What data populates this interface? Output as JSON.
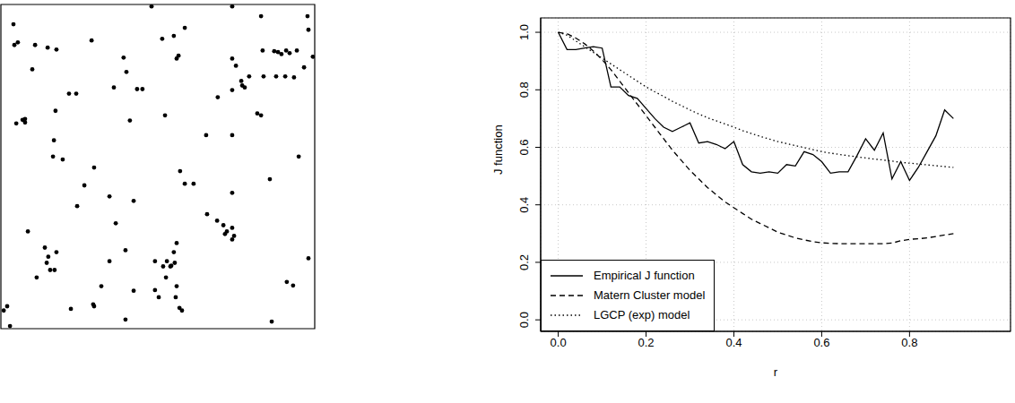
{
  "chart_data": [
    {
      "type": "scatter",
      "color": "#000000",
      "marker": "circle",
      "xlim": [
        0,
        1
      ],
      "ylim": [
        0,
        1
      ],
      "tick_labels": false,
      "x": [
        0.48,
        0.737,
        0.829,
        0.977,
        0.98,
        0.994,
        0.04,
        0.054,
        0.043,
        0.109,
        0.149,
        0.177,
        0.289,
        0.514,
        0.551,
        0.586,
        0.566,
        0.56,
        0.391,
        0.4,
        0.1,
        0.36,
        0.434,
        0.451,
        0.217,
        0.24,
        0.174,
        0.049,
        0.069,
        0.077,
        0.077,
        0.411,
        0.523,
        0.691,
        0.737,
        0.737,
        0.749,
        0.766,
        0.777,
        0.769,
        0.791,
        0.834,
        0.837,
        0.877,
        0.906,
        0.934,
        0.871,
        0.883,
        0.894,
        0.909,
        0.92,
        0.966,
        0.943,
        0.817,
        0.829,
        0.169,
        0.166,
        0.197,
        0.297,
        0.266,
        0.346,
        0.366,
        0.423,
        0.571,
        0.586,
        0.614,
        0.654,
        0.737,
        0.737,
        0.949,
        0.857,
        0.243,
        0.657,
        0.689,
        0.709,
        0.72,
        0.714,
        0.737,
        0.737,
        0.743,
        0.086,
        0.14,
        0.177,
        0.151,
        0.146,
        0.157,
        0.114,
        0.171,
        0.346,
        0.397,
        0.32,
        0.423,
        0.491,
        0.529,
        0.543,
        0.551,
        0.56,
        0.554,
        0.54,
        0.517,
        0.56,
        0.526,
        0.491,
        0.503,
        0.557,
        0.569,
        0.577,
        0.294,
        0.297,
        0.223,
        0.397,
        0.863,
        0.911,
        0.931,
        0.98,
        0.02,
        0.009,
        0.029
      ],
      "y": [
        0.994,
        0.994,
        0.964,
        0.964,
        0.922,
        0.839,
        0.939,
        0.883,
        0.875,
        0.875,
        0.867,
        0.861,
        0.889,
        0.894,
        0.903,
        0.928,
        0.842,
        0.833,
        0.836,
        0.792,
        0.8,
        0.744,
        0.739,
        0.739,
        0.725,
        0.725,
        0.672,
        0.633,
        0.644,
        0.647,
        0.636,
        0.642,
        0.658,
        0.714,
        0.736,
        0.833,
        0.811,
        0.764,
        0.744,
        0.75,
        0.778,
        0.858,
        0.778,
        0.778,
        0.778,
        0.775,
        0.856,
        0.853,
        0.847,
        0.858,
        0.85,
        0.806,
        0.858,
        0.664,
        0.658,
        0.581,
        0.531,
        0.522,
        0.497,
        0.442,
        0.408,
        0.325,
        0.394,
        0.486,
        0.447,
        0.447,
        0.597,
        0.597,
        0.419,
        0.531,
        0.461,
        0.378,
        0.353,
        0.333,
        0.319,
        0.3,
        0.292,
        0.311,
        0.275,
        0.286,
        0.3,
        0.25,
        0.236,
        0.222,
        0.203,
        0.181,
        0.158,
        0.181,
        0.208,
        0.242,
        0.131,
        0.117,
        0.208,
        0.208,
        0.194,
        0.236,
        0.264,
        0.203,
        0.192,
        0.192,
        0.131,
        0.158,
        0.119,
        0.097,
        0.097,
        0.064,
        0.056,
        0.075,
        0.069,
        0.061,
        0.028,
        0.022,
        0.144,
        0.133,
        0.217,
        0.069,
        0.056,
        0.008
      ]
    },
    {
      "type": "line",
      "x_label": "r",
      "y_label": "J function",
      "grid": true,
      "legend": "bottom-left",
      "xlim": [
        -0.04,
        1.03
      ],
      "ylim": [
        -0.04,
        1.05
      ],
      "xticks": [
        {
          "value": 0,
          "label": "0.0"
        },
        {
          "value": 0.2,
          "label": "0.2"
        },
        {
          "value": 0.4,
          "label": "0.4"
        },
        {
          "value": 0.6,
          "label": "0.6"
        },
        {
          "value": 0.8,
          "label": "0.8"
        }
      ],
      "yticks": [
        {
          "value": 0,
          "label": "0.0"
        },
        {
          "value": 0.2,
          "label": "0.2"
        },
        {
          "value": 0.4,
          "label": "0.4"
        },
        {
          "value": 0.6,
          "label": "0.6"
        },
        {
          "value": 0.8,
          "label": "0.8"
        },
        {
          "value": 1,
          "label": "1.0"
        }
      ],
      "x": [
        0,
        0.02,
        0.04,
        0.06,
        0.08,
        0.1,
        0.12,
        0.14,
        0.16,
        0.18,
        0.2,
        0.22,
        0.24,
        0.26,
        0.28,
        0.3,
        0.32,
        0.34,
        0.36,
        0.38,
        0.4,
        0.42,
        0.44,
        0.46,
        0.48,
        0.5,
        0.52,
        0.54,
        0.56,
        0.58,
        0.6,
        0.62,
        0.64,
        0.66,
        0.68,
        0.7,
        0.72,
        0.74,
        0.76,
        0.78,
        0.8,
        0.82,
        0.84,
        0.86,
        0.88,
        0.9
      ],
      "series": [
        {
          "name": "Empirical J function",
          "color": "#000000",
          "line_style": "solid",
          "values": [
            1.0,
            0.94,
            0.94,
            0.945,
            0.95,
            0.945,
            0.81,
            0.81,
            0.78,
            0.77,
            0.735,
            0.7,
            0.67,
            0.655,
            0.67,
            0.685,
            0.615,
            0.62,
            0.61,
            0.595,
            0.62,
            0.54,
            0.515,
            0.51,
            0.515,
            0.51,
            0.54,
            0.535,
            0.585,
            0.575,
            0.55,
            0.51,
            0.515,
            0.515,
            0.57,
            0.63,
            0.59,
            0.65,
            0.49,
            0.55,
            0.485,
            0.53,
            0.585,
            0.64,
            0.73,
            0.7
          ]
        },
        {
          "name": "Matern Cluster model",
          "color": "#000000",
          "line_style": "dashed",
          "values": [
            1.0,
            0.995,
            0.98,
            0.96,
            0.935,
            0.905,
            0.87,
            0.83,
            0.79,
            0.75,
            0.71,
            0.67,
            0.63,
            0.59,
            0.555,
            0.52,
            0.49,
            0.46,
            0.435,
            0.41,
            0.39,
            0.37,
            0.35,
            0.335,
            0.32,
            0.305,
            0.295,
            0.285,
            0.278,
            0.272,
            0.268,
            0.266,
            0.265,
            0.265,
            0.265,
            0.265,
            0.265,
            0.265,
            0.267,
            0.275,
            0.28,
            0.282,
            0.285,
            0.29,
            0.295,
            0.3
          ]
        },
        {
          "name": "LGCP (exp) model",
          "color": "#000000",
          "line_style": "dotted",
          "values": [
            1.0,
            0.99,
            0.97,
            0.95,
            0.93,
            0.91,
            0.89,
            0.87,
            0.85,
            0.83,
            0.81,
            0.793,
            0.777,
            0.76,
            0.745,
            0.73,
            0.716,
            0.703,
            0.692,
            0.681,
            0.67,
            0.658,
            0.648,
            0.638,
            0.629,
            0.62,
            0.613,
            0.606,
            0.599,
            0.592,
            0.585,
            0.58,
            0.575,
            0.571,
            0.567,
            0.563,
            0.559,
            0.556,
            0.552,
            0.548,
            0.545,
            0.542,
            0.539,
            0.536,
            0.533,
            0.53
          ]
        }
      ]
    }
  ]
}
